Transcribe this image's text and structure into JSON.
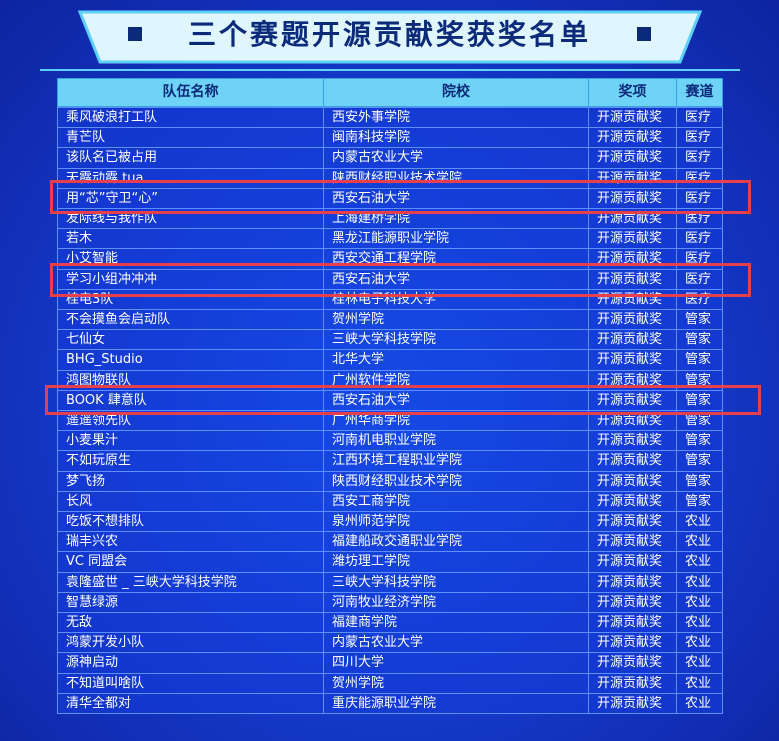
{
  "title": "三个赛题开源贡献奖获奖名单",
  "table": {
    "columns": [
      "队伍名称",
      "院校",
      "奖项",
      "赛道"
    ],
    "rows": [
      [
        "乘风破浪打工队",
        "西安外事学院",
        "开源贡献奖",
        "医疗"
      ],
      [
        "青芒队",
        "闽南科技学院",
        "开源贡献奖",
        "医疗"
      ],
      [
        "该队名已被占用",
        "内蒙古农业大学",
        "开源贡献奖",
        "医疗"
      ],
      [
        "天霹动霹.tua",
        "陕西财经职业技术学院",
        "开源贡献奖",
        "医疗"
      ],
      [
        "用“芯”守卫“心”",
        "西安石油大学",
        "开源贡献奖",
        "医疗"
      ],
      [
        "发际线与我作队",
        "上海建桥学院",
        "开源贡献奖",
        "医疗"
      ],
      [
        "若木",
        "黑龙江能源职业学院",
        "开源贡献奖",
        "医疗"
      ],
      [
        "小艾智能",
        "西安交通工程学院",
        "开源贡献奖",
        "医疗"
      ],
      [
        "学习小组冲冲冲",
        "西安石油大学",
        "开源贡献奖",
        "医疗"
      ],
      [
        "桂电3队",
        "桂林电子科技大学",
        "开源贡献奖",
        "医疗"
      ],
      [
        "不会摸鱼会启动队",
        "贺州学院",
        "开源贡献奖",
        "管家"
      ],
      [
        "七仙女",
        "三峡大学科技学院",
        "开源贡献奖",
        "管家"
      ],
      [
        "BHG_Studio",
        "北华大学",
        "开源贡献奖",
        "管家"
      ],
      [
        "鸿图物联队",
        "广州软件学院",
        "开源贡献奖",
        "管家"
      ],
      [
        "BOOK 肆意队",
        "西安石油大学",
        "开源贡献奖",
        "管家"
      ],
      [
        "遥遥领先队",
        "广州华商学院",
        "开源贡献奖",
        "管家"
      ],
      [
        "小麦果汁",
        "河南机电职业学院",
        "开源贡献奖",
        "管家"
      ],
      [
        "不如玩原生",
        "江西环境工程职业学院",
        "开源贡献奖",
        "管家"
      ],
      [
        "梦飞扬",
        "陕西财经职业技术学院",
        "开源贡献奖",
        "管家"
      ],
      [
        "长风",
        "西安工商学院",
        "开源贡献奖",
        "管家"
      ],
      [
        "吃饭不想排队",
        "泉州师范学院",
        "开源贡献奖",
        "农业"
      ],
      [
        "瑞丰兴农",
        "福建船政交通职业学院",
        "开源贡献奖",
        "农业"
      ],
      [
        "VC 同盟会",
        "潍坊理工学院",
        "开源贡献奖",
        "农业"
      ],
      [
        "袁隆盛世 _ 三峡大学科技学院",
        "三峡大学科技学院",
        "开源贡献奖",
        "农业"
      ],
      [
        "智慧绿源",
        "河南牧业经济学院",
        "开源贡献奖",
        "农业"
      ],
      [
        "无敌",
        "福建商学院",
        "开源贡献奖",
        "农业"
      ],
      [
        "鸿蒙开发小队",
        "内蒙古农业大学",
        "开源贡献奖",
        "农业"
      ],
      [
        "源神启动",
        "四川大学",
        "开源贡献奖",
        "农业"
      ],
      [
        "不知道叫啥队",
        "贺州学院",
        "开源贡献奖",
        "农业"
      ],
      [
        "清华全都对",
        "重庆能源职业学院",
        "开源贡献奖",
        "农业"
      ]
    ]
  }
}
